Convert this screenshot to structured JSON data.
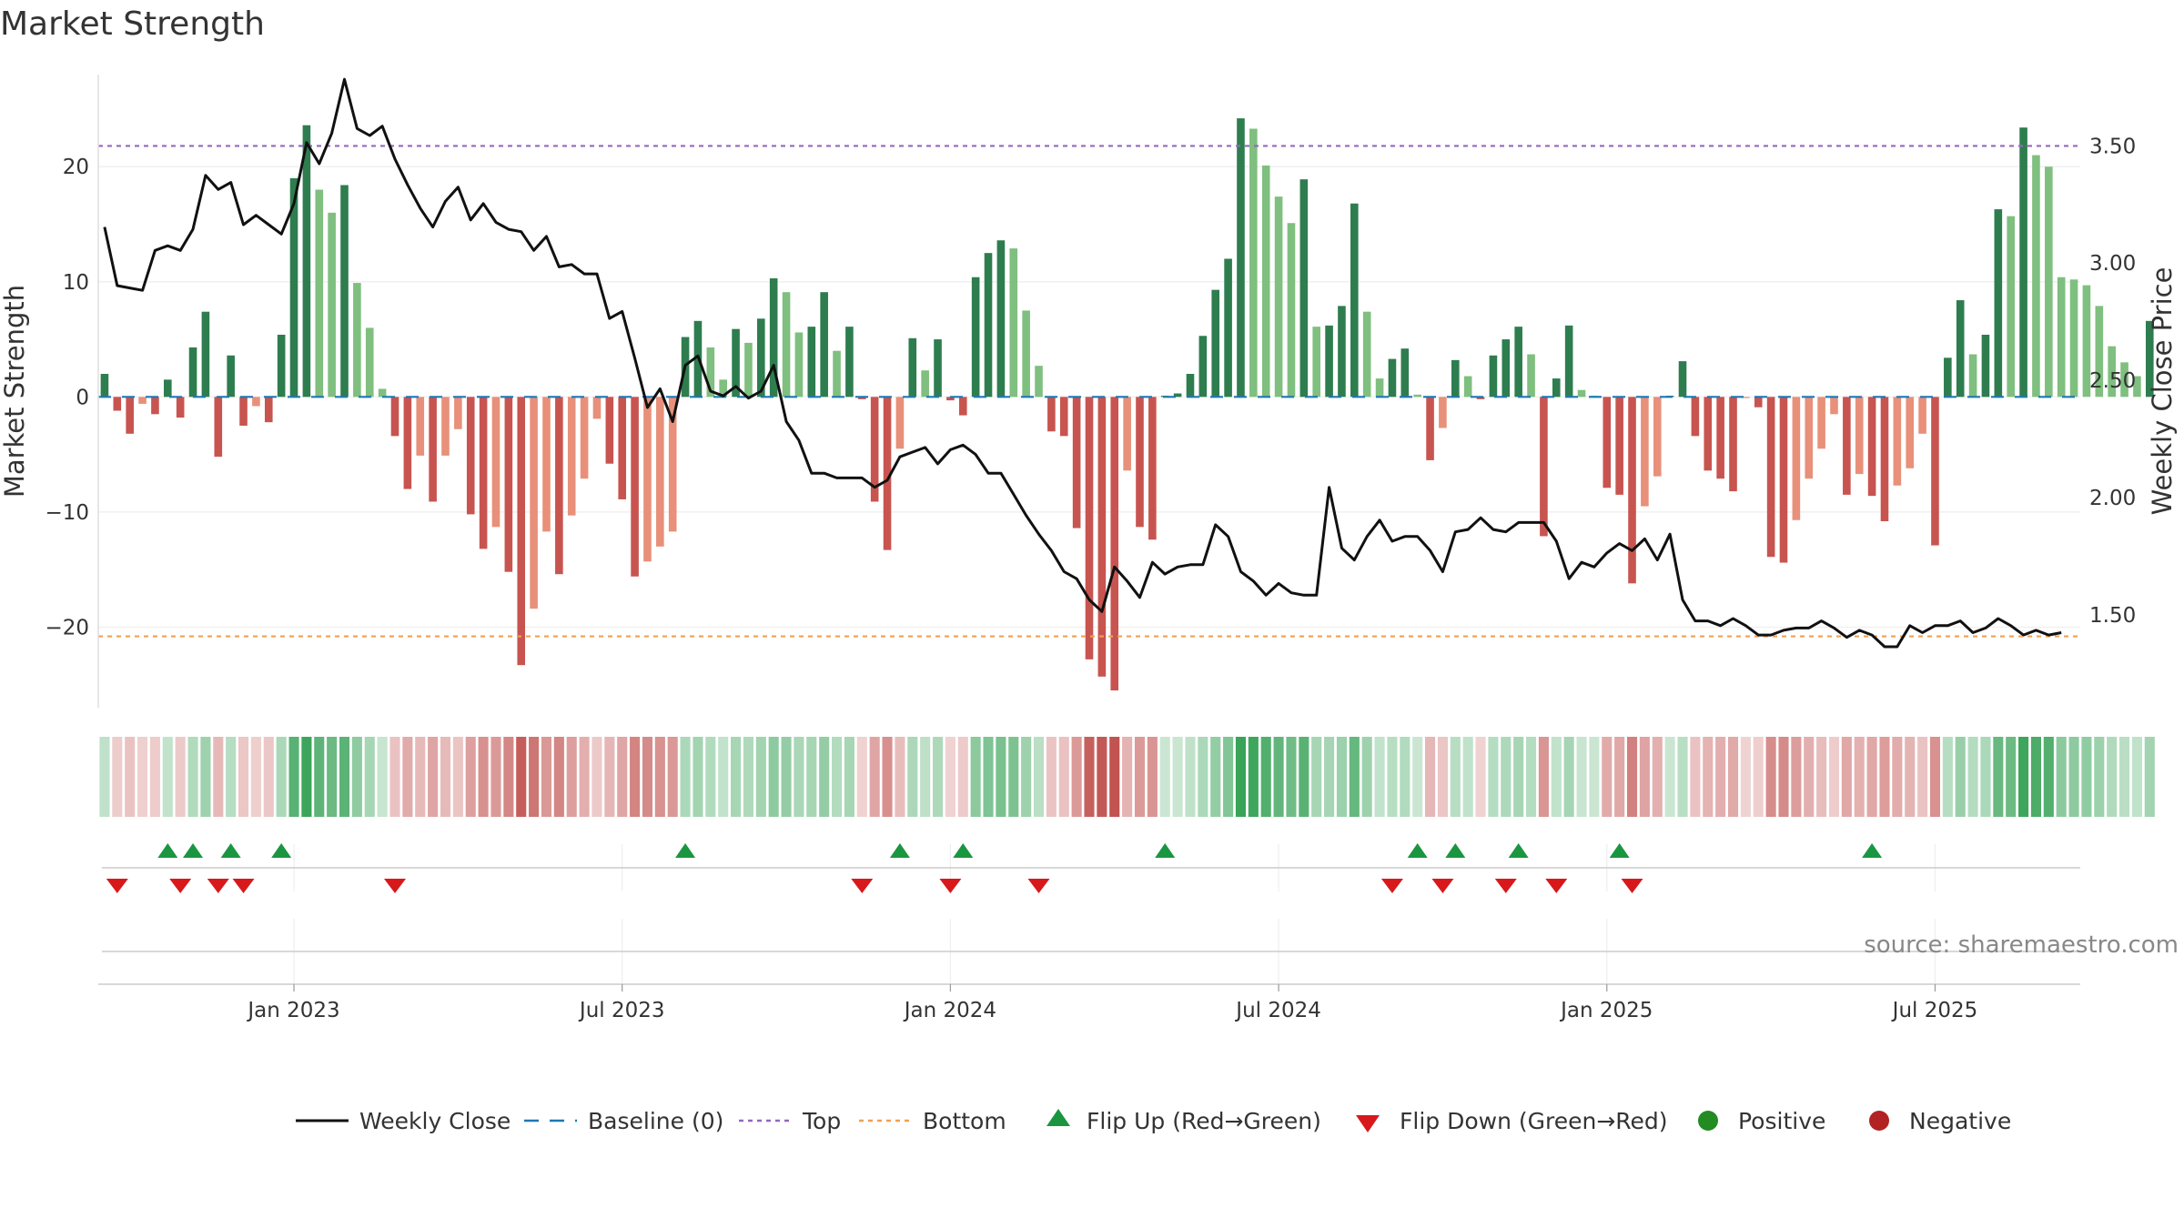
{
  "chart_data": {
    "type": "bar",
    "title": "Market Strength",
    "ylabel": "Market Strength",
    "y2label": "Weekly Close Price",
    "ylim": [
      -27,
      28
    ],
    "y2lim": [
      1.1,
      3.8
    ],
    "yticks": [
      20,
      10,
      0,
      -10,
      -20
    ],
    "ytick_labels": [
      "20",
      "10",
      "0",
      "−10",
      "−20"
    ],
    "y2ticks": [
      3.5,
      3.0,
      2.5,
      2.0,
      1.5
    ],
    "y2tick_labels": [
      "3.50",
      "3.00",
      "2.50",
      "2.00",
      "1.50"
    ],
    "x_ticks": [
      {
        "week": 15,
        "label": "Jan 2023"
      },
      {
        "week": 41,
        "label": "Jul 2023"
      },
      {
        "week": 67,
        "label": "Jan 2024"
      },
      {
        "week": 93,
        "label": "Jul 2024"
      },
      {
        "week": 119,
        "label": "Jan 2025"
      },
      {
        "week": 145,
        "label": "Jul 2025"
      }
    ],
    "top_line": 21.8,
    "bottom_line": -20.8,
    "baseline": 0,
    "weeks": 157,
    "strength": [
      2,
      -1.2,
      -3.2,
      -0.6,
      -1.5,
      1.5,
      -1.8,
      4.3,
      7.4,
      -5.2,
      3.6,
      -2.5,
      -0.8,
      -2.2,
      5.4,
      19,
      23.6,
      18,
      16,
      18.4,
      9.9,
      6,
      0.7,
      -3.4,
      -8,
      -5.1,
      -9.1,
      -5.1,
      -2.8,
      -10.2,
      -13.2,
      -11.3,
      -15.2,
      -23.3,
      -18.4,
      -11.7,
      -15.4,
      -10.3,
      -7.1,
      -1.9,
      -5.8,
      -8.9,
      -15.6,
      -14.3,
      -13,
      -11.7,
      5.2,
      6.6,
      4.3,
      1.5,
      5.9,
      4.7,
      6.8,
      10.3,
      9.1,
      5.6,
      6.1,
      9.1,
      4,
      6.1,
      -0.2,
      -9.1,
      -13.3,
      -4.5,
      5.1,
      2.3,
      5,
      -0.3,
      -1.6,
      10.4,
      12.5,
      13.6,
      12.9,
      7.5,
      2.7,
      -3,
      -3.4,
      -11.4,
      -22.8,
      -24.3,
      -25.5,
      -6.4,
      -11.3,
      -12.4,
      0.1,
      0.3,
      2,
      5.3,
      9.3,
      12,
      24.2,
      23.3,
      20.1,
      17.4,
      15.1,
      18.9,
      6.1,
      6.2,
      7.9,
      16.8,
      7.4,
      1.6,
      3.3,
      4.2,
      0.2,
      -5.5,
      -2.7,
      3.2,
      1.8,
      -0.2,
      3.6,
      5,
      6.1,
      3.7,
      -12.1,
      1.6,
      6.2,
      0.6,
      0.1,
      -7.9,
      -8.5,
      -16.2,
      -9.5,
      -6.9,
      0.1,
      3.1,
      -3.4,
      -6.4,
      -7.1,
      -8.2,
      -0.1,
      -0.9,
      -13.9,
      -14.4,
      -10.7,
      -7.1,
      -4.5,
      -1.5,
      -8.5,
      -6.7,
      -8.6,
      -10.8,
      -7.7,
      -6.2,
      -3.2,
      -12.9,
      3.4,
      8.4,
      3.7,
      5.4,
      16.3,
      15.7,
      23.4,
      21,
      20,
      10.4,
      10.2,
      9.7,
      7.9,
      4.4,
      3,
      1.8,
      6.6
    ],
    "close": [
      3.15,
      2.9,
      2.89,
      2.88,
      3.05,
      3.07,
      3.05,
      3.14,
      3.37,
      3.31,
      3.34,
      3.16,
      3.2,
      3.16,
      3.12,
      3.25,
      3.51,
      3.42,
      3.55,
      3.78,
      3.57,
      3.54,
      3.58,
      3.44,
      3.33,
      3.23,
      3.15,
      3.26,
      3.32,
      3.18,
      3.25,
      3.17,
      3.14,
      3.13,
      3.05,
      3.11,
      2.98,
      2.99,
      2.95,
      2.95,
      2.76,
      2.79,
      2.59,
      2.38,
      2.46,
      2.32,
      2.56,
      2.6,
      2.45,
      2.43,
      2.47,
      2.42,
      2.45,
      2.56,
      2.32,
      2.24,
      2.1,
      2.1,
      2.08,
      2.08,
      2.08,
      2.04,
      2.07,
      2.17,
      2.19,
      2.21,
      2.14,
      2.2,
      2.22,
      2.18,
      2.1,
      2.1,
      2.01,
      1.92,
      1.84,
      1.77,
      1.68,
      1.65,
      1.56,
      1.51,
      1.7,
      1.64,
      1.57,
      1.72,
      1.67,
      1.7,
      1.71,
      1.71,
      1.88,
      1.83,
      1.68,
      1.64,
      1.58,
      1.63,
      1.59,
      1.58,
      1.58,
      2.04,
      1.78,
      1.73,
      1.83,
      1.9,
      1.81,
      1.83,
      1.83,
      1.77,
      1.68,
      1.85,
      1.86,
      1.91,
      1.86,
      1.85,
      1.89,
      1.89,
      1.89,
      1.81,
      1.65,
      1.72,
      1.7,
      1.76,
      1.8,
      1.77,
      1.82,
      1.73,
      1.84,
      1.56,
      1.47,
      1.47,
      1.45,
      1.48,
      1.45,
      1.41,
      1.41,
      1.43,
      1.44,
      1.44,
      1.47,
      1.44,
      1.4,
      1.43,
      1.41,
      1.36,
      1.36,
      1.45,
      1.42,
      1.45,
      1.45,
      1.47,
      1.42,
      1.44,
      1.48,
      1.45,
      1.41,
      1.43,
      1.41,
      1.42
    ],
    "flip_up_weeks": [
      5,
      7,
      10,
      14,
      46,
      63,
      68,
      84,
      104,
      107,
      112,
      120,
      140
    ],
    "flip_down_weeks": [
      1,
      6,
      9,
      11,
      23,
      60,
      67,
      74,
      102,
      106,
      111,
      115,
      121
    ],
    "top_label": "Top",
    "bottom_label": "Bottom",
    "legend": [
      {
        "key": "close",
        "label": "Weekly Close"
      },
      {
        "key": "baseline",
        "label": "Baseline (0)"
      },
      {
        "key": "top",
        "label": "Top"
      },
      {
        "key": "bottom",
        "label": "Bottom"
      },
      {
        "key": "flipup",
        "label": "Flip Up (Red→Green)"
      },
      {
        "key": "flipdown",
        "label": "Flip Down (Green→Red)"
      },
      {
        "key": "positive",
        "label": "Positive"
      },
      {
        "key": "negative",
        "label": "Negative"
      }
    ],
    "legend_position": "bottom-center",
    "colors": {
      "pos_dark": "#2e7d4f",
      "pos_light": "#7fbf7f",
      "neg_dark": "#c85450",
      "neg_light": "#e8907a",
      "close": "#111111",
      "baseline": "#1f77b4",
      "top": "#9467bd",
      "bottom": "#f0a050",
      "flip_up": "#1a9641",
      "flip_down": "#d7191c",
      "positive": "#228b22",
      "negative": "#b22222"
    },
    "source": "source: sharemaestro.com"
  }
}
